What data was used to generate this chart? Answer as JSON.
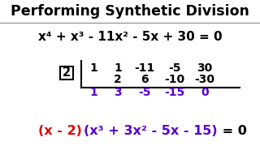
{
  "title": "Performing Synthetic Division",
  "title_color": "#000000",
  "title_bg": "#cccccc",
  "bg_color": "#ffffff",
  "equation": "x⁴ + x³ - 11x² - 5x + 30 = 0",
  "divisor": "2",
  "row1": [
    "1",
    "1",
    "-11",
    "-5",
    "30"
  ],
  "row2": [
    "2",
    "6",
    "-10",
    "-30"
  ],
  "row3": [
    "1",
    "3",
    "-5",
    "-15",
    "0"
  ],
  "result_red": "(x - 2)",
  "result_purple": "(x³ + 3x² - 5x - 15)",
  "result_end": " = 0",
  "purple_color": "#5500cc",
  "red_color": "#dd0000",
  "row3_color": "#5500cc",
  "title_fontsize": 12.5,
  "eq_fontsize": 11,
  "div_fontsize": 10.5,
  "row_fontsize": 10,
  "result_fontsize": 11.5
}
